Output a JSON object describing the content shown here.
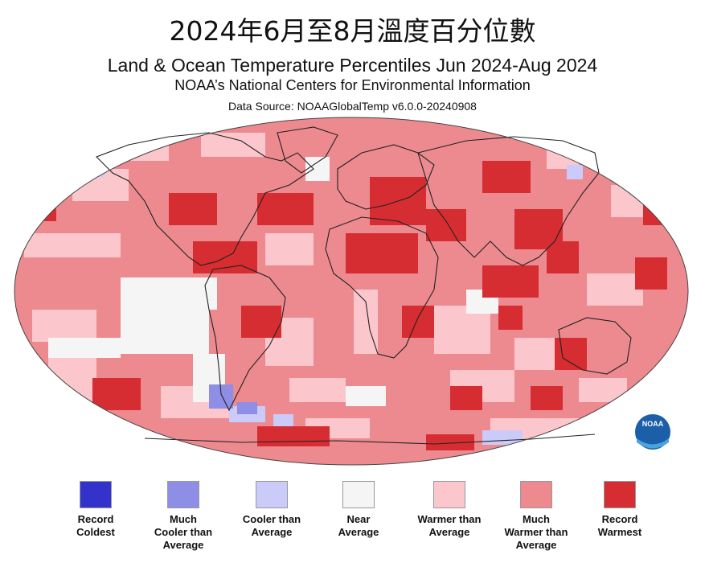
{
  "header": {
    "title_zh": "2024年6月至8月溫度百分位數",
    "title_en": "Land & Ocean Temperature Percentiles Jun 2024-Aug 2024",
    "subtitle": "NOAA’s National Centers for Environmental Information",
    "source": "Data Source: NOAAGlobalTemp v6.0.0-20240908"
  },
  "logo": {
    "text": "NOAA"
  },
  "colors": {
    "record_coldest": "#3333cc",
    "much_cooler": "#8e8ee6",
    "cooler": "#cbcbfa",
    "near": "#f5f5f5",
    "warmer": "#fbc7cc",
    "much_warmer": "#ec8a8f",
    "record_warmest": "#d62d32",
    "land_outline": "#222222"
  },
  "legend": [
    {
      "label": "Record\nColdest",
      "color": "#3333cc"
    },
    {
      "label": "Much\nCooler than\nAverage",
      "color": "#8e8ee6"
    },
    {
      "label": "Cooler than\nAverage",
      "color": "#cbcbfa"
    },
    {
      "label": "Near\nAverage",
      "color": "#f5f5f5"
    },
    {
      "label": "Warmer than\nAverage",
      "color": "#fbc7cc"
    },
    {
      "label": "Much\nWarmer than\nAverage",
      "color": "#ec8a8f"
    },
    {
      "label": "Record\nWarmest",
      "color": "#d62d32"
    }
  ]
}
